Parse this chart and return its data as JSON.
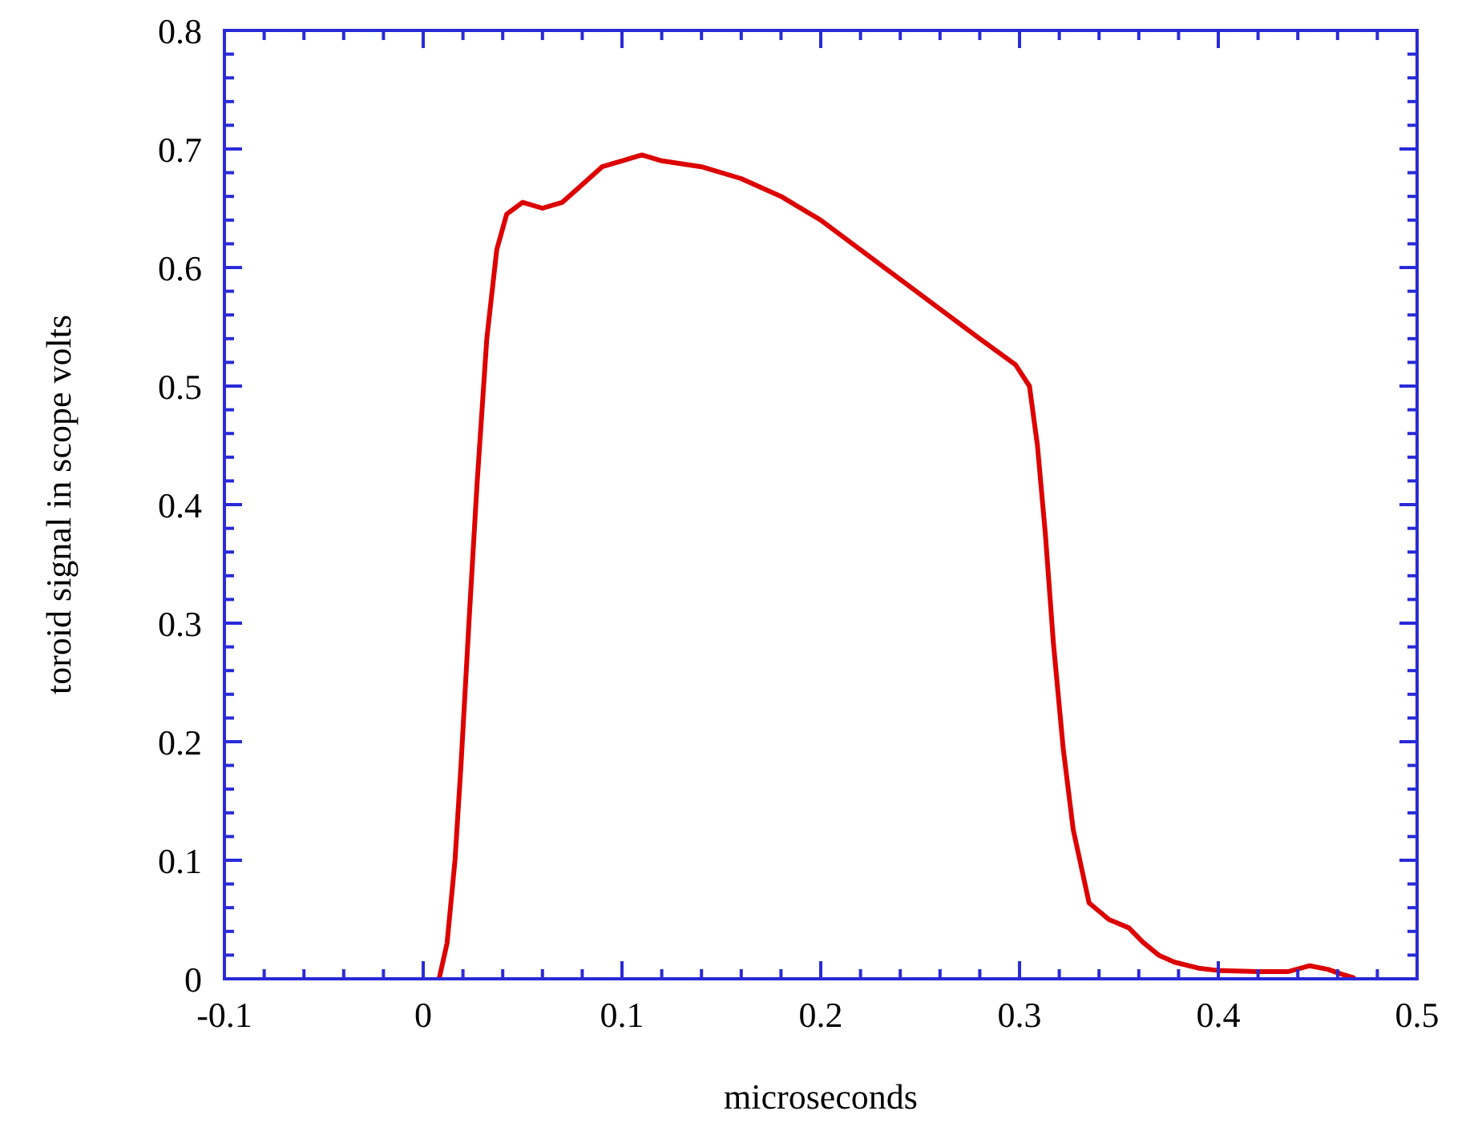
{
  "chart_data": {
    "type": "line",
    "xlabel": "microseconds",
    "ylabel": "toroid signal in scope volts",
    "xlim": [
      -0.1,
      0.5
    ],
    "xticks": [
      -0.1,
      {
        "value": -0.08,
        "label": null
      },
      {
        "value": -0.06,
        "label": null
      },
      {
        "value": -0.04,
        "label": null
      },
      {
        "value": -0.02,
        "label": null
      },
      0,
      {
        "value": 0.02,
        "label": null
      },
      {
        "value": 0.04,
        "label": null
      },
      {
        "value": 0.06,
        "label": null
      },
      {
        "value": 0.08,
        "label": null
      },
      0.1,
      {
        "value": 0.12,
        "label": null
      },
      {
        "value": 0.14,
        "label": null
      },
      {
        "value": 0.16,
        "label": null
      },
      {
        "value": 0.18,
        "label": null
      },
      0.2,
      {
        "value": 0.22,
        "label": null
      },
      {
        "value": 0.24,
        "label": null
      },
      {
        "value": 0.26,
        "label": null
      },
      {
        "value": 0.28,
        "label": null
      },
      0.3,
      {
        "value": 0.32,
        "label": null
      },
      {
        "value": 0.34,
        "label": null
      },
      {
        "value": 0.36,
        "label": null
      },
      {
        "value": 0.38,
        "label": null
      },
      0.4,
      {
        "value": 0.42,
        "label": null
      },
      {
        "value": 0.44,
        "label": null
      },
      {
        "value": 0.46,
        "label": null
      },
      {
        "value": 0.48,
        "label": null
      },
      0.5
    ],
    "ylim": [
      0,
      0.8
    ],
    "yticks": [
      0,
      {
        "value": 0.02,
        "label": null
      },
      {
        "value": 0.04,
        "label": null
      },
      {
        "value": 0.06,
        "label": null
      },
      {
        "value": 0.08,
        "label": null
      },
      0.1,
      {
        "value": 0.12,
        "label": null
      },
      {
        "value": 0.14,
        "label": null
      },
      {
        "value": 0.16,
        "label": null
      },
      {
        "value": 0.18,
        "label": null
      },
      0.2,
      {
        "value": 0.22,
        "label": null
      },
      {
        "value": 0.24,
        "label": null
      },
      {
        "value": 0.26,
        "label": null
      },
      {
        "value": 0.28,
        "label": null
      },
      0.3,
      {
        "value": 0.32,
        "label": null
      },
      {
        "value": 0.34,
        "label": null
      },
      {
        "value": 0.36,
        "label": null
      },
      {
        "value": 0.38,
        "label": null
      },
      0.4,
      {
        "value": 0.42,
        "label": null
      },
      {
        "value": 0.44,
        "label": null
      },
      {
        "value": 0.46,
        "label": null
      },
      {
        "value": 0.48,
        "label": null
      },
      0.5,
      {
        "value": 0.52,
        "label": null
      },
      {
        "value": 0.54,
        "label": null
      },
      {
        "value": 0.56,
        "label": null
      },
      {
        "value": 0.58,
        "label": null
      },
      0.6,
      {
        "value": 0.62,
        "label": null
      },
      {
        "value": 0.64,
        "label": null
      },
      {
        "value": 0.66,
        "label": null
      },
      {
        "value": 0.68,
        "label": null
      },
      0.7,
      {
        "value": 0.72,
        "label": null
      },
      {
        "value": 0.74,
        "label": null
      },
      {
        "value": 0.76,
        "label": null
      },
      {
        "value": 0.78,
        "label": null
      },
      0.8
    ],
    "grid": false,
    "marker": "none",
    "line_style": "solid",
    "series": [
      {
        "color": "#dd0000",
        "x": [
          0.008,
          0.012,
          0.016,
          0.019,
          0.023,
          0.027,
          0.032,
          0.037,
          0.042,
          0.05,
          0.06,
          0.07,
          0.08,
          0.09,
          0.1,
          0.11,
          0.12,
          0.14,
          0.16,
          0.18,
          0.2,
          0.22,
          0.24,
          0.26,
          0.28,
          0.298,
          0.305,
          0.309,
          0.313,
          0.317,
          0.322,
          0.327,
          0.335,
          0.345,
          0.355,
          0.362,
          0.37,
          0.378,
          0.39,
          0.4,
          0.42,
          0.435,
          0.446,
          0.455,
          0.462,
          0.468
        ],
        "values": [
          0,
          0.03,
          0.1,
          0.18,
          0.3,
          0.415,
          0.54,
          0.615,
          0.645,
          0.655,
          0.65,
          0.655,
          0.67,
          0.685,
          0.69,
          0.695,
          0.69,
          0.685,
          0.675,
          0.66,
          0.64,
          0.615,
          0.59,
          0.565,
          0.54,
          0.518,
          0.5,
          0.45,
          0.375,
          0.284,
          0.194,
          0.126,
          0.064,
          0.05,
          0.043,
          0.031,
          0.02,
          0.014,
          0.009,
          0.007,
          0.006,
          0.006,
          0.011,
          0.008,
          0.004,
          0.001
        ]
      }
    ]
  }
}
